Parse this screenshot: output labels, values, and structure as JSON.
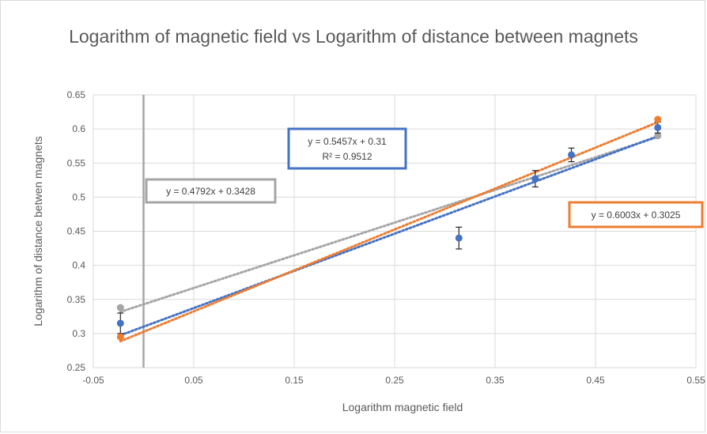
{
  "chart_data": {
    "type": "scatter",
    "title": "Logarithm of magnetic field vs Logarithm of distance between magnets",
    "xlabel": "Logarithm magnetic field",
    "ylabel": "Logarithm of distance betwen magnets",
    "xlim": [
      -0.05,
      0.55
    ],
    "ylim": [
      0.25,
      0.65
    ],
    "xticks": [
      -0.05,
      0.05,
      0.15,
      0.25,
      0.35,
      0.45,
      0.55
    ],
    "xtick_labels": [
      "-0.05",
      "0.05",
      "0.15",
      "0.25",
      "0.35",
      "0.45",
      "0.55"
    ],
    "yticks": [
      0.25,
      0.3,
      0.35,
      0.4,
      0.45,
      0.5,
      0.55,
      0.6,
      0.65
    ],
    "ytick_labels": [
      "0.25",
      "0.3",
      "0.35",
      "0.4",
      "0.45",
      "0.5",
      "0.55",
      "0.6",
      "0.65"
    ],
    "grid": true,
    "vertical_line_x": 0.0,
    "series": [
      {
        "color": "#4472c4",
        "points": [
          {
            "x": -0.023,
            "y": 0.315,
            "err": 0.015
          },
          {
            "x": 0.314,
            "y": 0.44,
            "err": 0.016
          },
          {
            "x": 0.39,
            "y": 0.527,
            "err": 0.012
          },
          {
            "x": 0.426,
            "y": 0.562,
            "err": 0.01
          },
          {
            "x": 0.512,
            "y": 0.602,
            "err": 0.008
          }
        ],
        "trendline": {
          "slope": 0.5457,
          "intercept": 0.31,
          "x_range": [
            -0.023,
            0.512
          ]
        },
        "equation": "y = 0.5457x + 0.31",
        "r2": "R² = 0.9512",
        "box_color": "#4472c4"
      },
      {
        "color": "#ed7d31",
        "points": [
          {
            "x": -0.023,
            "y": 0.295
          },
          {
            "x": 0.512,
            "y": 0.614
          }
        ],
        "trendline": {
          "slope": 0.6003,
          "intercept": 0.3025,
          "x_range": [
            -0.023,
            0.512
          ]
        },
        "equation": "y = 0.6003x + 0.3025",
        "box_color": "#ed7d31"
      },
      {
        "color": "#a5a5a5",
        "points": [
          {
            "x": -0.023,
            "y": 0.338
          },
          {
            "x": 0.512,
            "y": 0.59
          }
        ],
        "trendline": {
          "slope": 0.4792,
          "intercept": 0.3428,
          "x_range": [
            -0.023,
            0.512
          ]
        },
        "equation": "y = 0.4792x + 0.3428",
        "box_color": "#a5a5a5"
      }
    ]
  }
}
